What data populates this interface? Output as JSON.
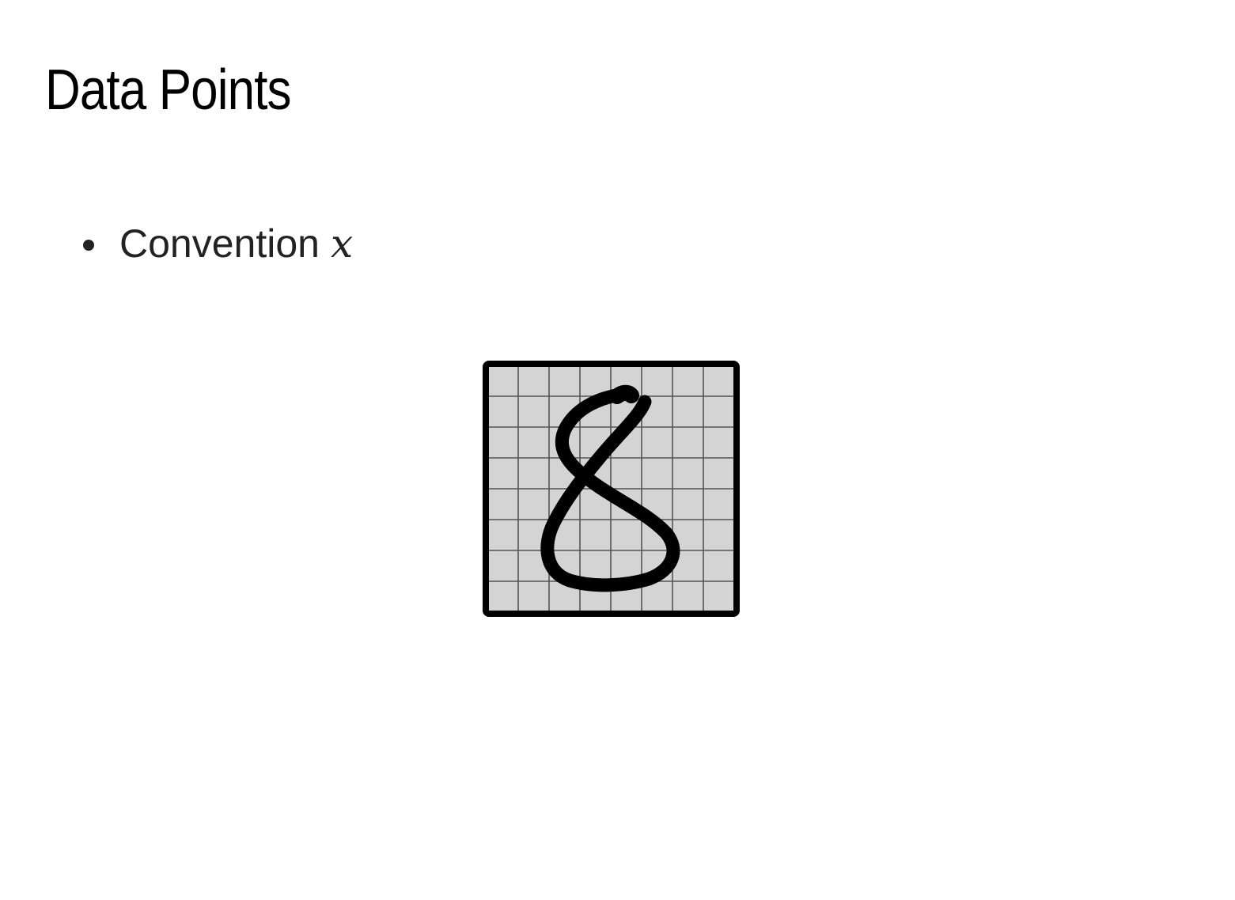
{
  "slide": {
    "title": "Data Points",
    "bullets": [
      {
        "text": "Convention",
        "math": "x"
      }
    ]
  },
  "figure": {
    "grid_rows": 8,
    "grid_cols": 8,
    "cell_color": "#d4d4d4",
    "grid_line_color": "#555555",
    "border_color": "#000000",
    "stroke_color": "#000000",
    "icon": "handwritten-digit-8-icon"
  }
}
